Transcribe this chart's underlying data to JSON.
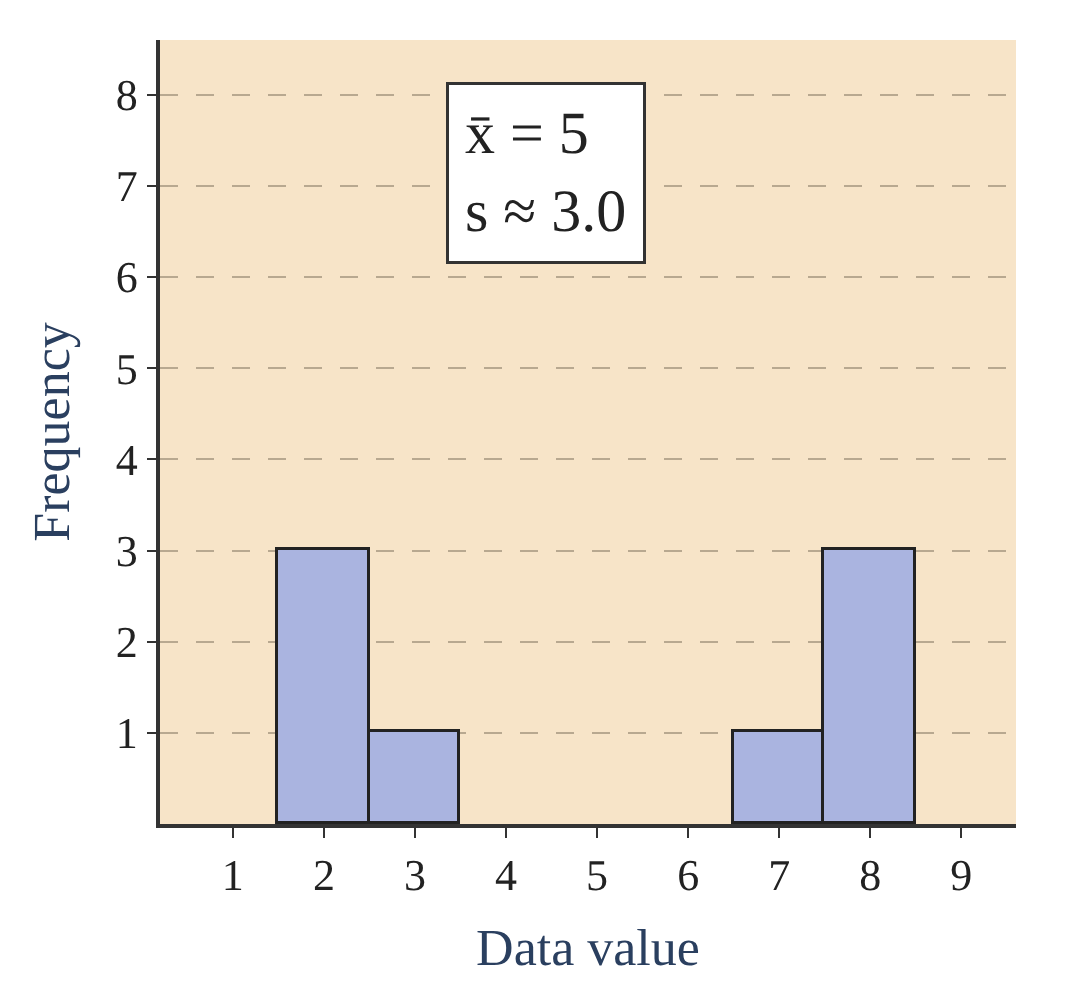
{
  "chart_data": {
    "type": "histogram",
    "xlabel": "Data value",
    "ylabel": "Frequency",
    "bins": [
      1.5,
      2.5,
      3.5,
      4.5,
      5.5,
      6.5,
      7.5,
      8.5
    ],
    "values": [
      3,
      1,
      0,
      0,
      0,
      1,
      3
    ],
    "color": "#aab4e0",
    "xlim": [
      0.2,
      9.6
    ],
    "xticks": [
      1,
      2,
      3,
      4,
      5,
      6,
      7,
      8,
      9
    ],
    "ylim": [
      0,
      8.6
    ],
    "yticks": [
      1,
      2,
      3,
      4,
      5,
      6,
      7,
      8
    ],
    "grid": "y",
    "annotations": [
      "x̄ = 5",
      "s ≈ 3.0"
    ]
  }
}
